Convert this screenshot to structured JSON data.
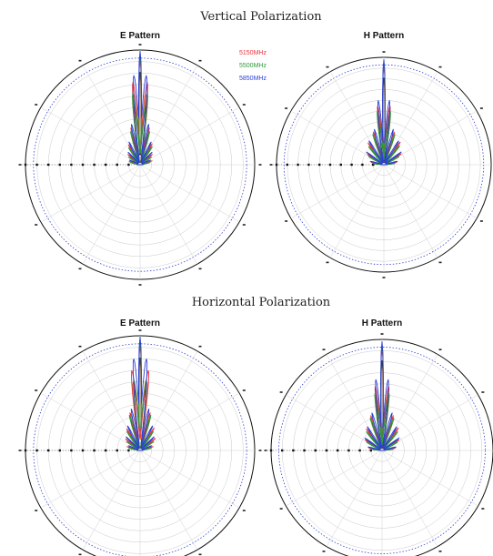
{
  "figure": {
    "sections": [
      {
        "title": "Vertical Polarization"
      },
      {
        "title": "Horizontal Polarization"
      }
    ],
    "legend": [
      {
        "label": "5150MHz",
        "color": "#e8333a"
      },
      {
        "label": "5500MHz",
        "color": "#2f9a3a"
      },
      {
        "label": "5850MHz",
        "color": "#2b3ed6"
      }
    ],
    "extra_trace_colors": [
      "#e07a3a",
      "#222222"
    ]
  },
  "chart_data": [
    {
      "type": "polar",
      "section": "Vertical Polarization",
      "title": "E Pattern",
      "series": [
        {
          "name": "5150MHz",
          "lobes": [
            [
              0,
              0.92
            ],
            [
              -5,
              0.72
            ],
            [
              5,
              0.72
            ],
            [
              -14,
              0.33
            ],
            [
              14,
              0.33
            ],
            [
              -30,
              0.2
            ],
            [
              30,
              0.21
            ],
            [
              -50,
              0.14
            ],
            [
              50,
              0.14
            ],
            [
              -72,
              0.1
            ],
            [
              72,
              0.11
            ]
          ]
        },
        {
          "name": "5500MHz",
          "lobes": [
            [
              0,
              0.95
            ],
            [
              -6,
              0.62
            ],
            [
              6,
              0.62
            ],
            [
              -16,
              0.3
            ],
            [
              16,
              0.3
            ],
            [
              -34,
              0.18
            ],
            [
              34,
              0.19
            ],
            [
              -56,
              0.12
            ],
            [
              56,
              0.12
            ],
            [
              -78,
              0.09
            ],
            [
              78,
              0.09
            ]
          ]
        },
        {
          "name": "5850MHz",
          "lobes": [
            [
              0,
              0.99
            ],
            [
              -4,
              0.78
            ],
            [
              4,
              0.78
            ],
            [
              -12,
              0.36
            ],
            [
              12,
              0.36
            ],
            [
              -26,
              0.22
            ],
            [
              26,
              0.22
            ],
            [
              -44,
              0.15
            ],
            [
              44,
              0.15
            ],
            [
              -66,
              0.1
            ],
            [
              66,
              0.1
            ]
          ]
        }
      ]
    },
    {
      "type": "polar",
      "section": "Vertical Polarization",
      "title": "H Pattern",
      "series": [
        {
          "name": "5150MHz",
          "lobes": [
            [
              0,
              0.92
            ],
            [
              -6,
              0.55
            ],
            [
              6,
              0.55
            ],
            [
              -18,
              0.32
            ],
            [
              18,
              0.32
            ],
            [
              -36,
              0.25
            ],
            [
              36,
              0.26
            ],
            [
              -58,
              0.18
            ],
            [
              58,
              0.19
            ],
            [
              -80,
              0.12
            ],
            [
              80,
              0.12
            ]
          ]
        },
        {
          "name": "5500MHz",
          "lobes": [
            [
              0,
              0.95
            ],
            [
              -7,
              0.5
            ],
            [
              7,
              0.5
            ],
            [
              -20,
              0.3
            ],
            [
              20,
              0.3
            ],
            [
              -40,
              0.22
            ],
            [
              40,
              0.23
            ],
            [
              -62,
              0.16
            ],
            [
              62,
              0.16
            ],
            [
              -84,
              0.1
            ],
            [
              84,
              0.1
            ]
          ]
        },
        {
          "name": "5850MHz",
          "lobes": [
            [
              0,
              0.98
            ],
            [
              -5,
              0.6
            ],
            [
              5,
              0.6
            ],
            [
              -15,
              0.34
            ],
            [
              15,
              0.34
            ],
            [
              -32,
              0.26
            ],
            [
              32,
              0.26
            ],
            [
              -54,
              0.2
            ],
            [
              54,
              0.2
            ],
            [
              -76,
              0.13
            ],
            [
              76,
              0.13
            ]
          ]
        }
      ]
    },
    {
      "type": "polar",
      "section": "Horizontal Polarization",
      "title": "E Pattern",
      "series": [
        {
          "name": "5150MHz",
          "lobes": [
            [
              0,
              0.92
            ],
            [
              -6,
              0.7
            ],
            [
              6,
              0.7
            ],
            [
              -15,
              0.34
            ],
            [
              15,
              0.34
            ],
            [
              -32,
              0.22
            ],
            [
              32,
              0.23
            ],
            [
              -52,
              0.16
            ],
            [
              52,
              0.17
            ],
            [
              -74,
              0.12
            ],
            [
              74,
              0.12
            ]
          ]
        },
        {
          "name": "5500MHz",
          "lobes": [
            [
              0,
              0.95
            ],
            [
              -5,
              0.62
            ],
            [
              5,
              0.62
            ],
            [
              -17,
              0.32
            ],
            [
              17,
              0.32
            ],
            [
              -35,
              0.2
            ],
            [
              35,
              0.2
            ],
            [
              -57,
              0.14
            ],
            [
              57,
              0.14
            ],
            [
              -79,
              0.1
            ],
            [
              79,
              0.1
            ]
          ]
        },
        {
          "name": "5850MHz",
          "lobes": [
            [
              0,
              0.99
            ],
            [
              -4,
              0.8
            ],
            [
              4,
              0.8
            ],
            [
              -12,
              0.37
            ],
            [
              12,
              0.37
            ],
            [
              -27,
              0.24
            ],
            [
              27,
              0.24
            ],
            [
              -46,
              0.17
            ],
            [
              46,
              0.17
            ],
            [
              -68,
              0.11
            ],
            [
              68,
              0.11
            ]
          ]
        }
      ]
    },
    {
      "type": "polar",
      "section": "Horizontal Polarization",
      "title": "H Pattern",
      "series": [
        {
          "name": "5150MHz",
          "lobes": [
            [
              0,
              0.92
            ],
            [
              -6,
              0.58
            ],
            [
              6,
              0.58
            ],
            [
              -18,
              0.33
            ],
            [
              18,
              0.33
            ],
            [
              -36,
              0.24
            ],
            [
              36,
              0.25
            ],
            [
              -58,
              0.18
            ],
            [
              58,
              0.18
            ],
            [
              -80,
              0.12
            ],
            [
              80,
              0.12
            ]
          ]
        },
        {
          "name": "5500MHz",
          "lobes": [
            [
              0,
              0.95
            ],
            [
              -7,
              0.52
            ],
            [
              7,
              0.52
            ],
            [
              -20,
              0.31
            ],
            [
              20,
              0.31
            ],
            [
              -40,
              0.22
            ],
            [
              40,
              0.22
            ],
            [
              -62,
              0.16
            ],
            [
              62,
              0.16
            ],
            [
              -84,
              0.1
            ],
            [
              84,
              0.1
            ]
          ]
        },
        {
          "name": "5850MHz",
          "lobes": [
            [
              0,
              0.98
            ],
            [
              -5,
              0.64
            ],
            [
              5,
              0.64
            ],
            [
              -15,
              0.35
            ],
            [
              15,
              0.35
            ],
            [
              -32,
              0.25
            ],
            [
              32,
              0.25
            ],
            [
              -54,
              0.19
            ],
            [
              54,
              0.19
            ],
            [
              -76,
              0.13
            ],
            [
              76,
              0.13
            ]
          ]
        }
      ]
    }
  ]
}
